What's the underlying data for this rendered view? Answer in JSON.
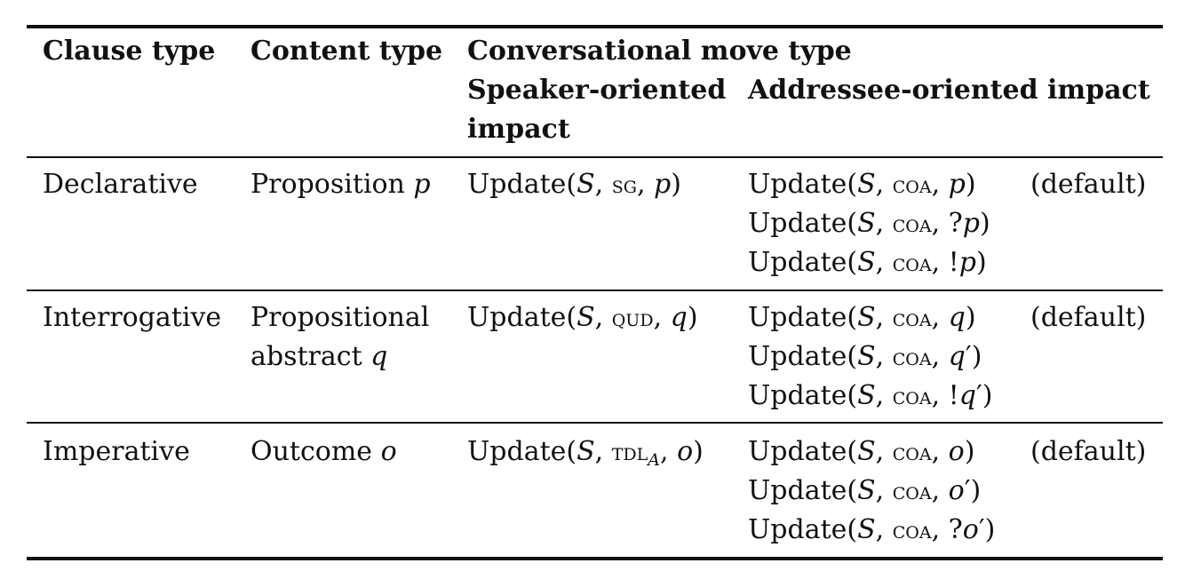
{
  "header": {
    "clause_type": "Clause type",
    "content_type": "Content type",
    "move_type": "Conversational move type",
    "speaker_line1": "Speaker-oriented",
    "speaker_line2": "impact",
    "addressee": "Addressee-oriented impact"
  },
  "fn": {
    "update_open": "Update(",
    "sep": ", ",
    "close": ")",
    "S": "S",
    "sg": "sg",
    "qud": "qud",
    "tdl": "tdl",
    "tdl_sub": "A",
    "coa": "coa",
    "q": "?",
    "ex": "!",
    "prime": "′"
  },
  "rows": [
    {
      "clause": "Declarative",
      "content_label": "Proposition ",
      "content_var": "p",
      "var": "p",
      "default": "(default)"
    },
    {
      "clause": "Interrogative",
      "content_label1": "Propositional",
      "content_label2": "abstract ",
      "content_var": "q",
      "var": "q",
      "default": "(default)"
    },
    {
      "clause": "Imperative",
      "content_label": "Outcome ",
      "content_var": "o",
      "var": "o",
      "default": "(default)"
    }
  ]
}
